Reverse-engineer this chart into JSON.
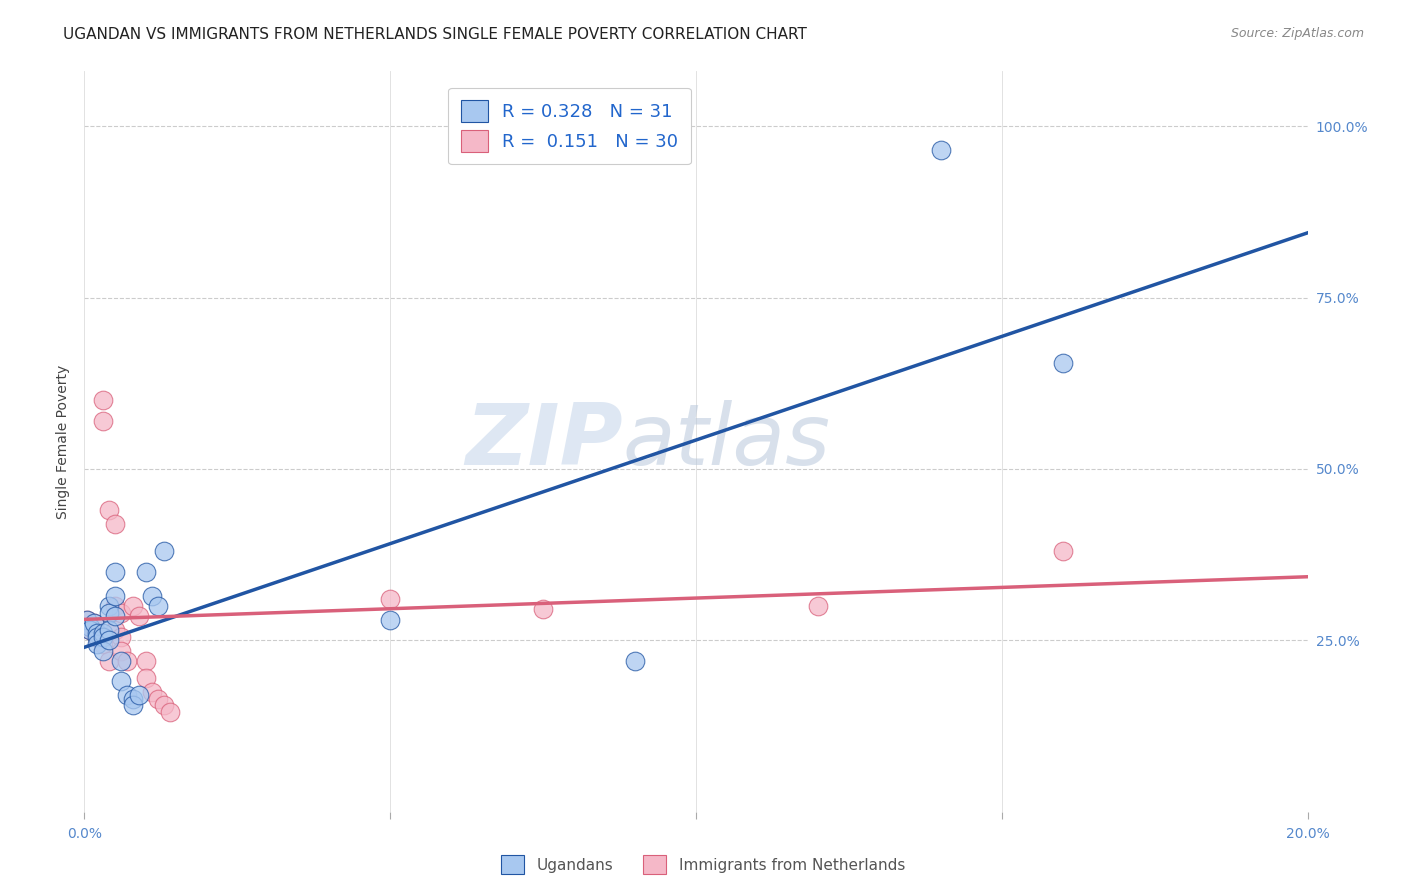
{
  "title": "UGANDAN VS IMMIGRANTS FROM NETHERLANDS SINGLE FEMALE POVERTY CORRELATION CHART",
  "source": "Source: ZipAtlas.com",
  "ylabel": "Single Female Poverty",
  "right_yticks": [
    "100.0%",
    "75.0%",
    "50.0%",
    "25.0%"
  ],
  "right_ytick_vals": [
    1.0,
    0.75,
    0.5,
    0.25
  ],
  "xlim": [
    0.0,
    0.2
  ],
  "ylim": [
    0.0,
    1.08
  ],
  "R_ugandan": 0.328,
  "N_ugandan": 31,
  "R_netherlands": 0.151,
  "N_netherlands": 30,
  "ugandan_x": [
    0.0005,
    0.001,
    0.001,
    0.0015,
    0.002,
    0.002,
    0.002,
    0.003,
    0.003,
    0.003,
    0.004,
    0.004,
    0.004,
    0.004,
    0.005,
    0.005,
    0.005,
    0.006,
    0.006,
    0.007,
    0.008,
    0.008,
    0.009,
    0.01,
    0.011,
    0.012,
    0.013,
    0.05,
    0.09,
    0.14,
    0.16
  ],
  "ugandan_y": [
    0.28,
    0.27,
    0.265,
    0.275,
    0.26,
    0.255,
    0.245,
    0.26,
    0.255,
    0.235,
    0.3,
    0.29,
    0.265,
    0.25,
    0.35,
    0.315,
    0.285,
    0.22,
    0.19,
    0.17,
    0.165,
    0.155,
    0.17,
    0.35,
    0.315,
    0.3,
    0.38,
    0.28,
    0.22,
    0.965,
    0.655
  ],
  "netherlands_x": [
    0.0005,
    0.001,
    0.001,
    0.0015,
    0.002,
    0.002,
    0.003,
    0.003,
    0.003,
    0.004,
    0.004,
    0.005,
    0.005,
    0.005,
    0.006,
    0.006,
    0.006,
    0.007,
    0.008,
    0.009,
    0.01,
    0.01,
    0.011,
    0.012,
    0.013,
    0.014,
    0.05,
    0.075,
    0.12,
    0.16
  ],
  "netherlands_y": [
    0.28,
    0.27,
    0.265,
    0.275,
    0.26,
    0.255,
    0.6,
    0.57,
    0.245,
    0.44,
    0.22,
    0.42,
    0.3,
    0.265,
    0.29,
    0.255,
    0.235,
    0.22,
    0.3,
    0.285,
    0.22,
    0.195,
    0.175,
    0.165,
    0.155,
    0.145,
    0.31,
    0.295,
    0.3,
    0.38
  ],
  "ugandan_color": "#A8C8F0",
  "netherlands_color": "#F5B8C8",
  "trend_blue": "#2155A3",
  "trend_pink": "#D9607A",
  "background_color": "#FFFFFF",
  "watermark_zip": "ZIP",
  "watermark_atlas": "atlas",
  "title_fontsize": 11,
  "axis_label_fontsize": 10,
  "tick_fontsize": 10,
  "legend_fontsize": 13
}
